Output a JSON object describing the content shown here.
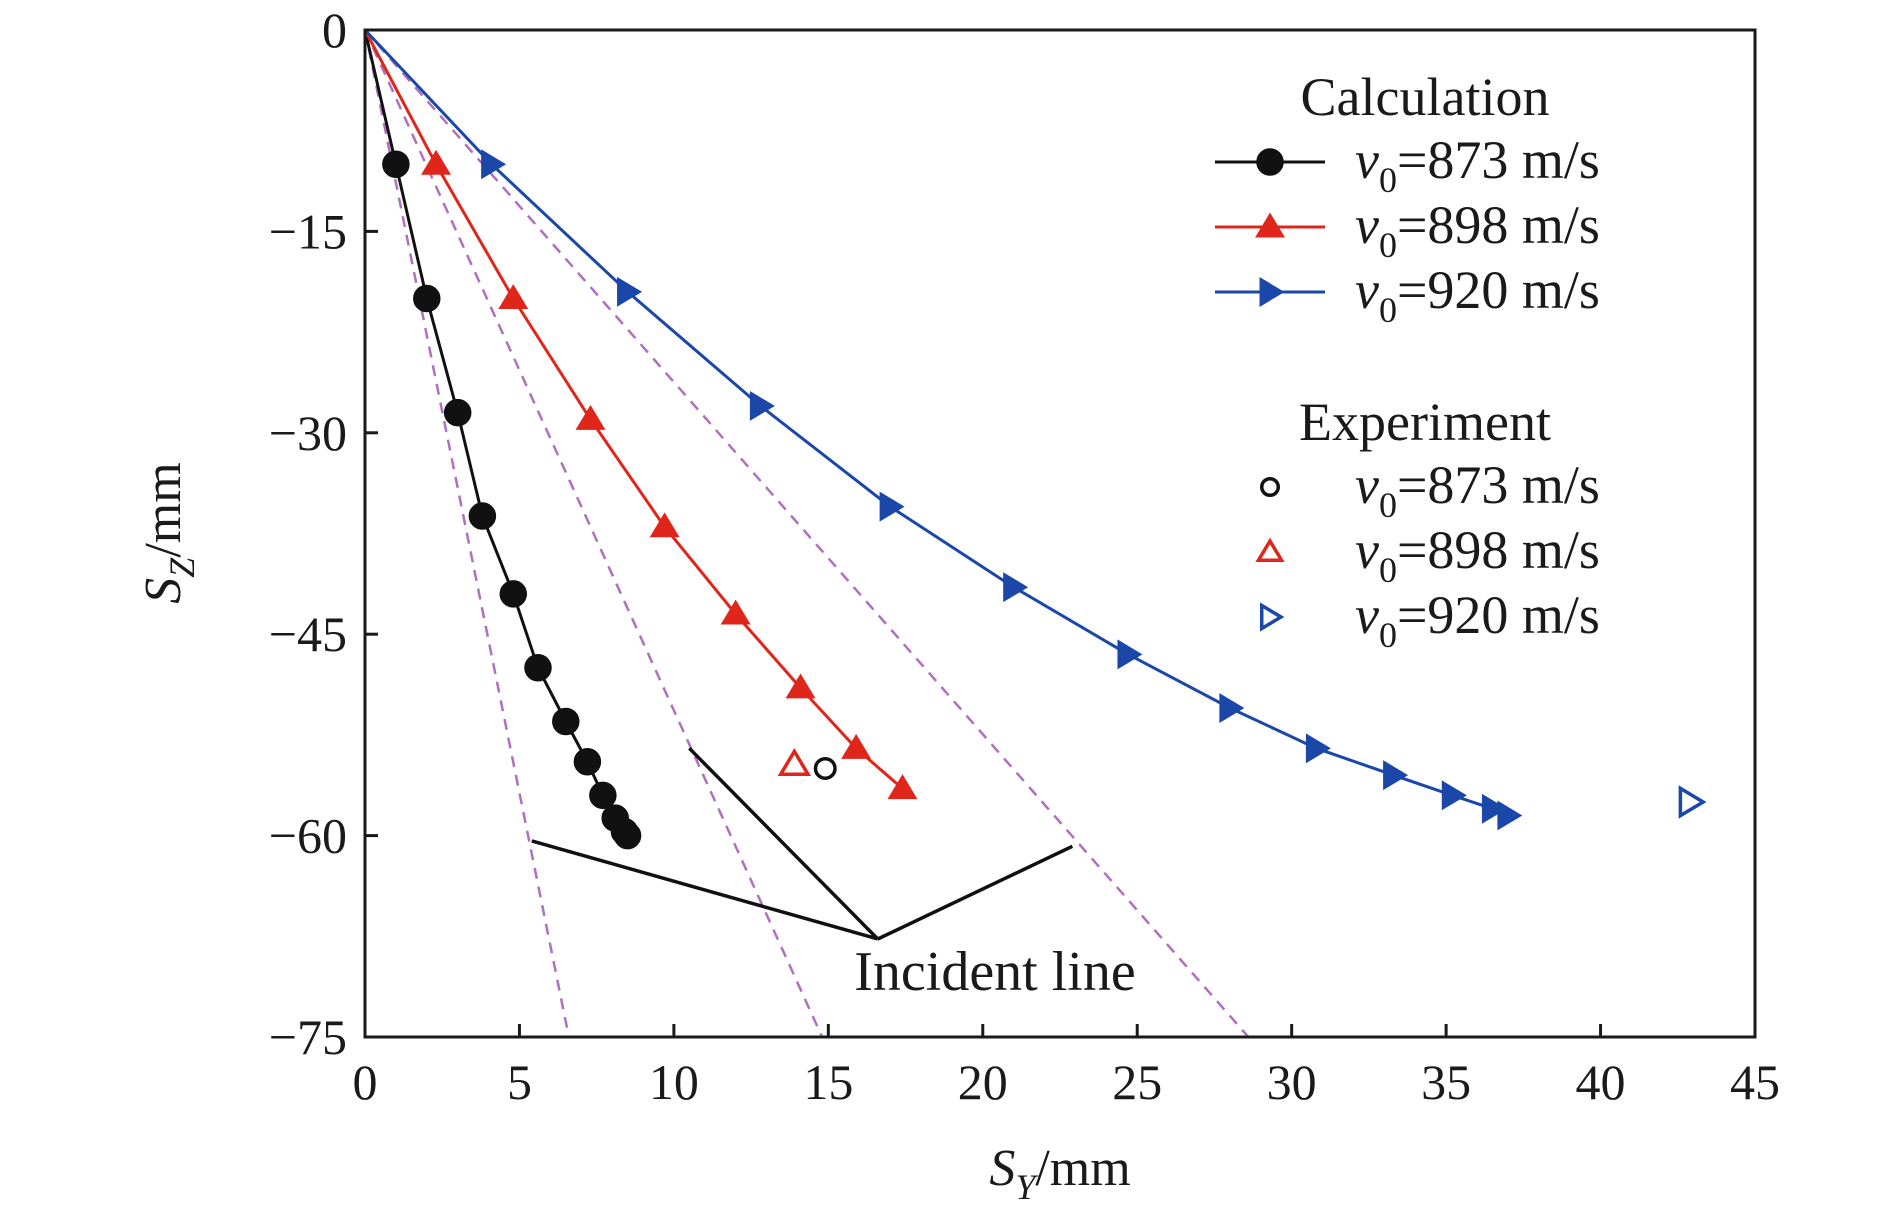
{
  "chart_data": {
    "type": "line",
    "xlabel": {
      "main": "S",
      "sub": "Y",
      "unit": "/mm"
    },
    "ylabel": {
      "main": "S",
      "sub": "Z",
      "unit": "/mm"
    },
    "xlim": [
      0,
      45
    ],
    "ylim": [
      -75,
      0
    ],
    "x_ticks": [
      "0",
      "5",
      "10",
      "15",
      "20",
      "25",
      "30",
      "35",
      "40",
      "45"
    ],
    "y_ticks": [
      "0",
      "−15",
      "−30",
      "−45",
      "−60",
      "−75"
    ],
    "grid": false,
    "legend_position": "top-right",
    "legend": {
      "calculation_title": "Calculation",
      "experiment_title": "Experiment"
    },
    "colors": {
      "black": "#111111",
      "red": "#e0261b",
      "blue": "#1a47a8",
      "incident": "#b070c0"
    },
    "series": [
      {
        "group": "Calculation",
        "label_var": "v",
        "label_sub": "0",
        "label_value": "=873 m/s",
        "color": "#111111",
        "marker": "circle-filled",
        "x": [
          0,
          1.0,
          2.0,
          3.0,
          3.8,
          4.8,
          5.6,
          6.5,
          7.2,
          7.7,
          8.1,
          8.4,
          8.5
        ],
        "y": [
          0,
          -10,
          -20,
          -28.5,
          -36.2,
          -42,
          -47.5,
          -51.5,
          -54.5,
          -57,
          -58.7,
          -59.7,
          -60
        ]
      },
      {
        "group": "Calculation",
        "label_var": "v",
        "label_sub": "0",
        "label_value": "=898 m/s",
        "color": "#e0261b",
        "marker": "triangle-up-filled",
        "x": [
          0,
          2.3,
          4.8,
          7.3,
          9.7,
          12.0,
          14.1,
          15.9,
          17.4
        ],
        "y": [
          0,
          -10,
          -20,
          -29,
          -37,
          -43.5,
          -49,
          -53.5,
          -56.5
        ]
      },
      {
        "group": "Calculation",
        "label_var": "v",
        "label_sub": "0",
        "label_value": "=920 m/s",
        "color": "#1a47a8",
        "marker": "triangle-right-filled",
        "x": [
          0,
          4.1,
          8.5,
          12.8,
          17.0,
          21.0,
          24.7,
          28.0,
          30.8,
          33.3,
          35.2,
          36.5,
          37.0
        ],
        "y": [
          0,
          -10,
          -19.5,
          -28,
          -35.5,
          -41.5,
          -46.5,
          -50.5,
          -53.5,
          -55.5,
          -57,
          -58,
          -58.5
        ]
      },
      {
        "group": "Experiment",
        "label_var": "v",
        "label_sub": "0",
        "label_value": "=873 m/s",
        "color": "#111111",
        "marker": "circle-open",
        "x": [
          14.9
        ],
        "y": [
          -55
        ]
      },
      {
        "group": "Experiment",
        "label_var": "v",
        "label_sub": "0",
        "label_value": "=898 m/s",
        "color": "#e0261b",
        "marker": "triangle-up-open",
        "x": [
          13.9
        ],
        "y": [
          -54.7
        ]
      },
      {
        "group": "Experiment",
        "label_var": "v",
        "label_sub": "0",
        "label_value": "=920 m/s",
        "color": "#1a47a8",
        "marker": "triangle-right-open",
        "x": [
          42.9
        ],
        "y": [
          -57.5
        ]
      }
    ],
    "incident_lines": [
      {
        "x": [
          0,
          6.6
        ],
        "y": [
          0,
          -75
        ]
      },
      {
        "x": [
          0,
          14.8
        ],
        "y": [
          0,
          -75
        ]
      },
      {
        "x": [
          0,
          28.6
        ],
        "y": [
          0,
          -75
        ]
      }
    ],
    "annotation": {
      "text": "Incident line",
      "apex": [
        16.6,
        -67.7
      ],
      "targets": [
        [
          5.4,
          -60.4
        ],
        [
          10.5,
          -53.5
        ],
        [
          22.9,
          -60.8
        ]
      ]
    }
  }
}
